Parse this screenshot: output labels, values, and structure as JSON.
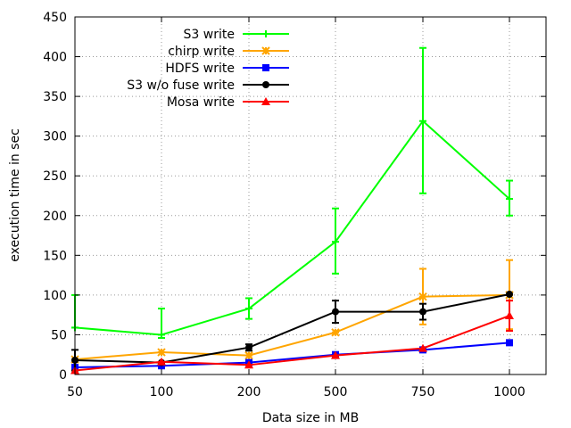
{
  "chart_data": {
    "type": "line",
    "xlabel": "Data size in MB",
    "ylabel": "execution time in sec",
    "categories": [
      "50",
      "100",
      "200",
      "500",
      "750",
      "1000"
    ],
    "ylim": [
      0,
      450
    ],
    "yticks": [
      0,
      50,
      100,
      150,
      200,
      250,
      300,
      350,
      400,
      450
    ],
    "grid": true,
    "legend_position": "top-left",
    "series": [
      {
        "name": "S3 write",
        "color": "#00ff00",
        "marker": "plus",
        "values": [
          59,
          50,
          83,
          167,
          319,
          221
        ],
        "err_low": [
          59,
          46,
          70,
          127,
          228,
          200
        ],
        "err_high": [
          100,
          83,
          96,
          209,
          411,
          244
        ]
      },
      {
        "name": "chirp write",
        "color": "#ffa500",
        "marker": "star",
        "values": [
          19,
          28,
          24,
          53,
          98,
          100
        ],
        "err_low": [
          19,
          28,
          24,
          53,
          63,
          57
        ],
        "err_high": [
          19,
          28,
          24,
          53,
          133,
          144
        ]
      },
      {
        "name": "HDFS write",
        "color": "#0000ff",
        "marker": "square",
        "values": [
          9,
          11,
          15,
          25,
          31,
          40
        ],
        "err_low": [
          9,
          11,
          15,
          25,
          31,
          37
        ],
        "err_high": [
          9,
          11,
          15,
          25,
          31,
          43
        ]
      },
      {
        "name": "S3 w/o fuse write",
        "color": "#000000",
        "marker": "circle",
        "values": [
          18,
          15,
          34,
          79,
          79,
          101
        ],
        "err_low": [
          5,
          15,
          30,
          65,
          69,
          101
        ],
        "err_high": [
          31,
          15,
          38,
          93,
          89,
          101
        ]
      },
      {
        "name": "Mosa write",
        "color": "#ff0000",
        "marker": "triangle",
        "values": [
          5,
          16,
          12,
          24,
          33,
          74
        ],
        "err_low": [
          5,
          16,
          12,
          24,
          33,
          55
        ],
        "err_high": [
          5,
          16,
          12,
          24,
          33,
          93
        ]
      }
    ]
  }
}
